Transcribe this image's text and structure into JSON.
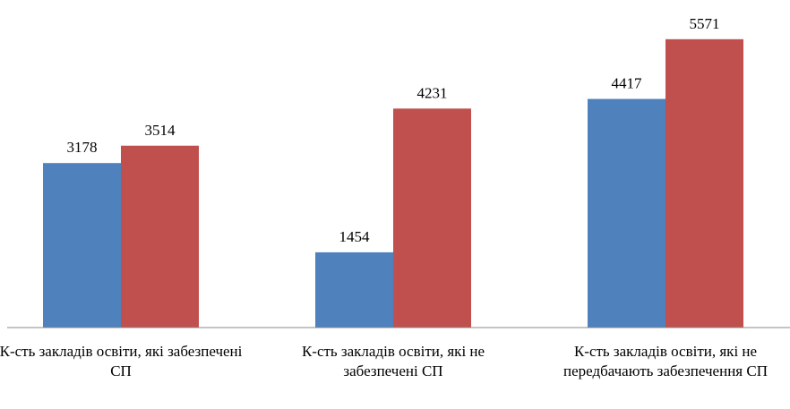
{
  "chart_data": {
    "type": "bar",
    "categories": [
      "К-сть закладів освіти, які забезпечені СП",
      "К-сть закладів освіти, які не забезпечені СП",
      "К-сть закладів освіти, які не передбачають забезпечення СП"
    ],
    "series": [
      {
        "color": "#4f81bd",
        "values": [
          3178,
          1454,
          4417
        ]
      },
      {
        "color": "#c0504d",
        "values": [
          3514,
          4231,
          5571
        ]
      }
    ],
    "ylim": [
      0,
      6000
    ]
  }
}
